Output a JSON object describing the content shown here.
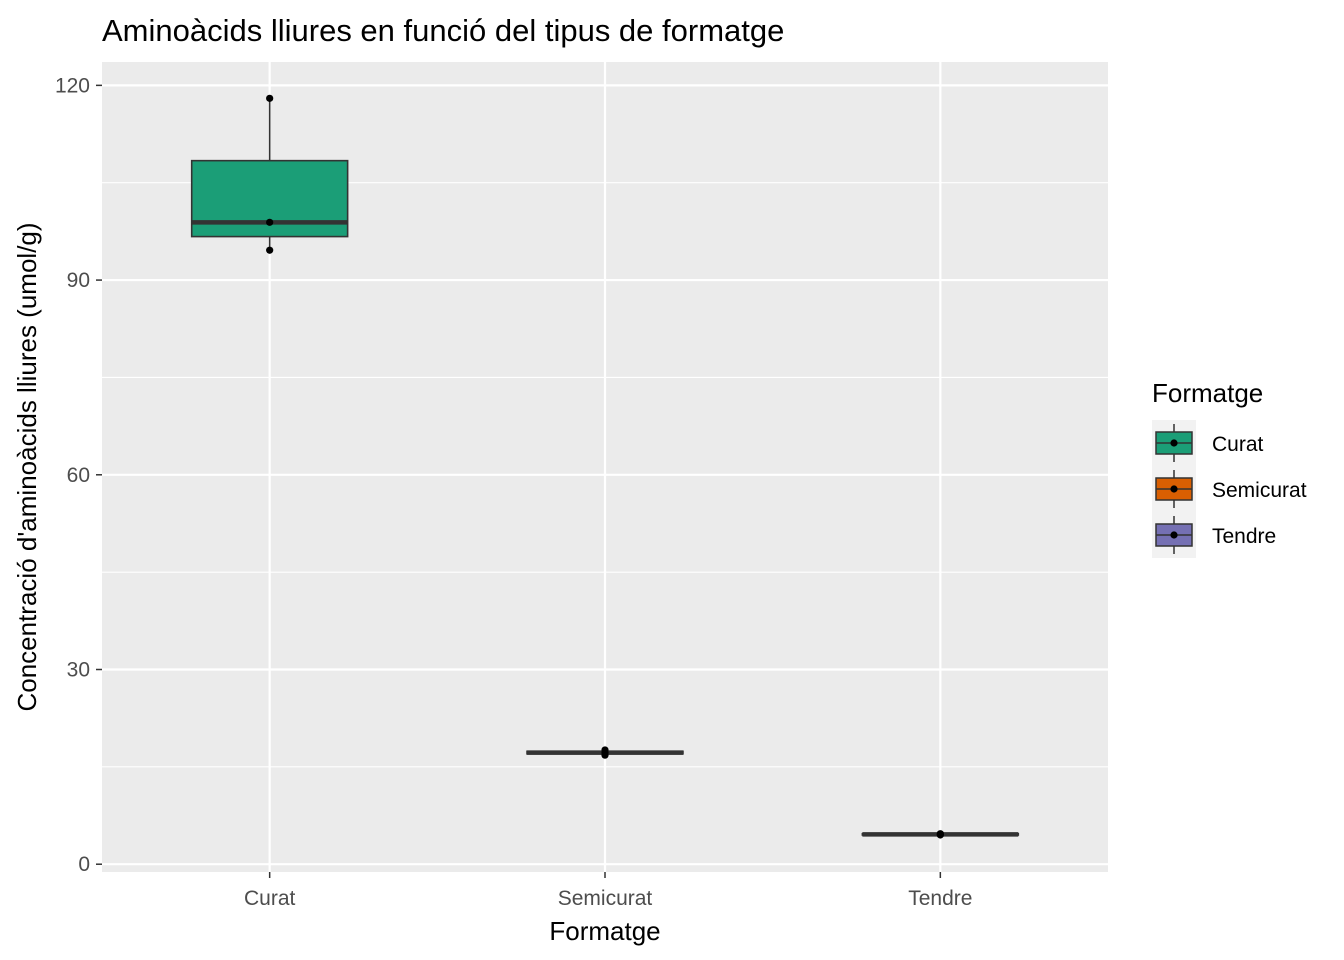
{
  "chart_data": {
    "type": "boxplot",
    "title": "Aminoàcids lliures en funció del tipus de formatge",
    "xlabel": "Formatge",
    "ylabel": "Concentració d'aminoàcids lliures (umol/g)",
    "ylim": [
      -1.2,
      123.6
    ],
    "y_ticks": [
      0,
      30,
      60,
      90,
      120
    ],
    "categories": [
      "Curat",
      "Semicurat",
      "Tendre"
    ],
    "boxes": [
      {
        "category": "Curat",
        "min": 94.6,
        "q1": 96.7,
        "median": 98.9,
        "q3": 108.4,
        "max": 118.0,
        "points": [
          94.6,
          98.9,
          118.0
        ]
      },
      {
        "category": "Semicurat",
        "min": 16.8,
        "q1": 17.0,
        "median": 17.2,
        "q3": 17.4,
        "max": 17.6,
        "points": [
          16.8,
          17.2,
          17.6
        ]
      },
      {
        "category": "Tendre",
        "min": 4.5,
        "q1": 4.5,
        "median": 4.6,
        "q3": 4.7,
        "max": 4.7,
        "points": [
          4.5,
          4.6,
          4.7
        ]
      }
    ],
    "grid": true,
    "legend": {
      "title": "Formatge",
      "placement": "right",
      "entries": [
        "Curat",
        "Semicurat",
        "Tendre"
      ]
    },
    "colors": {
      "Curat": "#1B9E77",
      "Semicurat": "#D95F02",
      "Tendre": "#7570B3",
      "panel": "#EBEBEB",
      "grid": "#FFFFFF",
      "outline": "#333333"
    }
  }
}
